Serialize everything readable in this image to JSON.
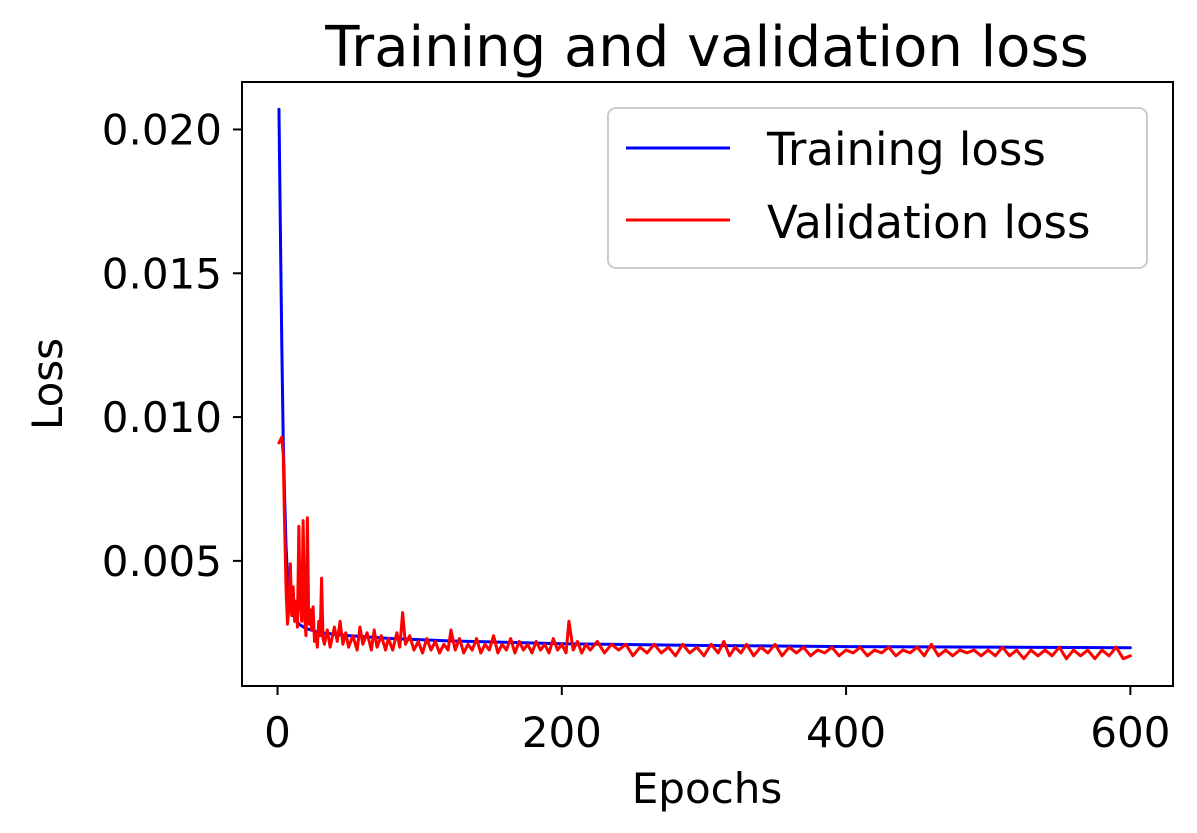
{
  "chart_data": {
    "type": "line",
    "title": "Training and validation loss",
    "xlabel": "Epochs",
    "ylabel": "Loss",
    "xlim": [
      -25,
      630
    ],
    "ylim": [
      0.00065,
      0.02165
    ],
    "xticks": [
      0,
      200,
      400,
      600
    ],
    "xtick_labels": [
      "0",
      "200",
      "400",
      "600"
    ],
    "yticks": [
      0.005,
      0.01,
      0.015,
      0.02
    ],
    "ytick_labels": [
      "0.005",
      "0.010",
      "0.015",
      "0.020"
    ],
    "grid": false,
    "legend_position": "top-right",
    "series": [
      {
        "name": "Training loss",
        "color": "#0000ff",
        "points": [
          [
            1,
            0.0207
          ],
          [
            2,
            0.0165
          ],
          [
            3,
            0.0125
          ],
          [
            4,
            0.0092
          ],
          [
            5,
            0.0072
          ],
          [
            6,
            0.0055
          ],
          [
            7,
            0.0045
          ],
          [
            8,
            0.0037
          ],
          [
            10,
            0.0032
          ],
          [
            15,
            0.0028
          ],
          [
            20,
            0.00265
          ],
          [
            30,
            0.0025
          ],
          [
            50,
            0.0024
          ],
          [
            80,
            0.0023
          ],
          [
            120,
            0.00222
          ],
          [
            200,
            0.00212
          ],
          [
            300,
            0.00206
          ],
          [
            400,
            0.00202
          ],
          [
            500,
            0.002
          ],
          [
            600,
            0.00198
          ]
        ]
      },
      {
        "name": "Validation loss",
        "color": "#ff0000",
        "points": [
          [
            1,
            0.0091
          ],
          [
            3,
            0.0093
          ],
          [
            4,
            0.0087
          ],
          [
            5,
            0.0062
          ],
          [
            6,
            0.004
          ],
          [
            7,
            0.0028
          ],
          [
            8,
            0.0034
          ],
          [
            9,
            0.0049
          ],
          [
            10,
            0.0031
          ],
          [
            11,
            0.0041
          ],
          [
            12,
            0.0029
          ],
          [
            13,
            0.0036
          ],
          [
            14,
            0.0027
          ],
          [
            15,
            0.0062
          ],
          [
            16,
            0.0035
          ],
          [
            17,
            0.0029
          ],
          [
            18,
            0.0064
          ],
          [
            19,
            0.0031
          ],
          [
            20,
            0.0024
          ],
          [
            21,
            0.0065
          ],
          [
            22,
            0.0028
          ],
          [
            23,
            0.0033
          ],
          [
            24,
            0.0026
          ],
          [
            25,
            0.0034
          ],
          [
            26,
            0.0022
          ],
          [
            27,
            0.0025
          ],
          [
            28,
            0.002
          ],
          [
            29,
            0.0029
          ],
          [
            30,
            0.0024
          ],
          [
            31,
            0.0044
          ],
          [
            32,
            0.0023
          ],
          [
            33,
            0.0021
          ],
          [
            35,
            0.0026
          ],
          [
            37,
            0.002
          ],
          [
            40,
            0.0027
          ],
          [
            42,
            0.0022
          ],
          [
            44,
            0.0029
          ],
          [
            46,
            0.0021
          ],
          [
            48,
            0.0025
          ],
          [
            50,
            0.002
          ],
          [
            53,
            0.0024
          ],
          [
            56,
            0.0019
          ],
          [
            58,
            0.0027
          ],
          [
            60,
            0.0021
          ],
          [
            63,
            0.0025
          ],
          [
            66,
            0.0019
          ],
          [
            68,
            0.0026
          ],
          [
            70,
            0.002
          ],
          [
            73,
            0.0024
          ],
          [
            76,
            0.0019
          ],
          [
            78,
            0.0023
          ],
          [
            81,
            0.0019
          ],
          [
            84,
            0.0025
          ],
          [
            86,
            0.002
          ],
          [
            88,
            0.0032
          ],
          [
            90,
            0.0021
          ],
          [
            93,
            0.0024
          ],
          [
            96,
            0.0019
          ],
          [
            99,
            0.0022
          ],
          [
            102,
            0.0018
          ],
          [
            105,
            0.0023
          ],
          [
            108,
            0.0019
          ],
          [
            111,
            0.0022
          ],
          [
            114,
            0.0018
          ],
          [
            117,
            0.0021
          ],
          [
            120,
            0.0019
          ],
          [
            122,
            0.0026
          ],
          [
            125,
            0.0019
          ],
          [
            128,
            0.0023
          ],
          [
            131,
            0.0018
          ],
          [
            134,
            0.0021
          ],
          [
            137,
            0.0019
          ],
          [
            140,
            0.0023
          ],
          [
            143,
            0.0018
          ],
          [
            146,
            0.0021
          ],
          [
            149,
            0.0019
          ],
          [
            152,
            0.0024
          ],
          [
            155,
            0.0018
          ],
          [
            158,
            0.0021
          ],
          [
            161,
            0.0019
          ],
          [
            164,
            0.0023
          ],
          [
            167,
            0.0018
          ],
          [
            170,
            0.0022
          ],
          [
            173,
            0.0019
          ],
          [
            176,
            0.0021
          ],
          [
            179,
            0.0018
          ],
          [
            182,
            0.0022
          ],
          [
            185,
            0.0019
          ],
          [
            188,
            0.0021
          ],
          [
            191,
            0.0018
          ],
          [
            194,
            0.0023
          ],
          [
            197,
            0.0019
          ],
          [
            200,
            0.0021
          ],
          [
            203,
            0.0018
          ],
          [
            205,
            0.0029
          ],
          [
            208,
            0.0019
          ],
          [
            211,
            0.0022
          ],
          [
            214,
            0.0018
          ],
          [
            217,
            0.0021
          ],
          [
            220,
            0.0019
          ],
          [
            225,
            0.0022
          ],
          [
            230,
            0.0018
          ],
          [
            235,
            0.0021
          ],
          [
            240,
            0.0019
          ],
          [
            245,
            0.0021
          ],
          [
            250,
            0.0017
          ],
          [
            255,
            0.002
          ],
          [
            260,
            0.0018
          ],
          [
            265,
            0.0021
          ],
          [
            270,
            0.0018
          ],
          [
            275,
            0.002
          ],
          [
            280,
            0.0017
          ],
          [
            285,
            0.0021
          ],
          [
            290,
            0.0018
          ],
          [
            295,
            0.002
          ],
          [
            300,
            0.0017
          ],
          [
            305,
            0.0021
          ],
          [
            310,
            0.0018
          ],
          [
            314,
            0.0022
          ],
          [
            318,
            0.0017
          ],
          [
            322,
            0.002
          ],
          [
            326,
            0.0018
          ],
          [
            330,
            0.0021
          ],
          [
            335,
            0.0017
          ],
          [
            340,
            0.002
          ],
          [
            345,
            0.0018
          ],
          [
            350,
            0.0021
          ],
          [
            355,
            0.0017
          ],
          [
            360,
            0.002
          ],
          [
            365,
            0.0018
          ],
          [
            370,
            0.002
          ],
          [
            375,
            0.0017
          ],
          [
            380,
            0.0019
          ],
          [
            385,
            0.0018
          ],
          [
            390,
            0.002
          ],
          [
            395,
            0.0017
          ],
          [
            400,
            0.0019
          ],
          [
            405,
            0.0018
          ],
          [
            410,
            0.002
          ],
          [
            415,
            0.0017
          ],
          [
            420,
            0.0019
          ],
          [
            425,
            0.0018
          ],
          [
            430,
            0.002
          ],
          [
            435,
            0.0017
          ],
          [
            440,
            0.0019
          ],
          [
            445,
            0.0018
          ],
          [
            450,
            0.002
          ],
          [
            455,
            0.0017
          ],
          [
            460,
            0.0021
          ],
          [
            465,
            0.0017
          ],
          [
            470,
            0.0019
          ],
          [
            475,
            0.0017
          ],
          [
            480,
            0.0019
          ],
          [
            485,
            0.0018
          ],
          [
            490,
            0.0019
          ],
          [
            495,
            0.0017
          ],
          [
            500,
            0.0019
          ],
          [
            505,
            0.0017
          ],
          [
            510,
            0.002
          ],
          [
            515,
            0.0017
          ],
          [
            520,
            0.0019
          ],
          [
            525,
            0.0016
          ],
          [
            530,
            0.0019
          ],
          [
            535,
            0.0017
          ],
          [
            540,
            0.0019
          ],
          [
            545,
            0.0017
          ],
          [
            550,
            0.002
          ],
          [
            555,
            0.0016
          ],
          [
            560,
            0.0019
          ],
          [
            565,
            0.0017
          ],
          [
            570,
            0.0019
          ],
          [
            575,
            0.0016
          ],
          [
            580,
            0.0019
          ],
          [
            585,
            0.0017
          ],
          [
            590,
            0.002
          ],
          [
            595,
            0.0016
          ],
          [
            600,
            0.0017
          ]
        ]
      }
    ]
  }
}
